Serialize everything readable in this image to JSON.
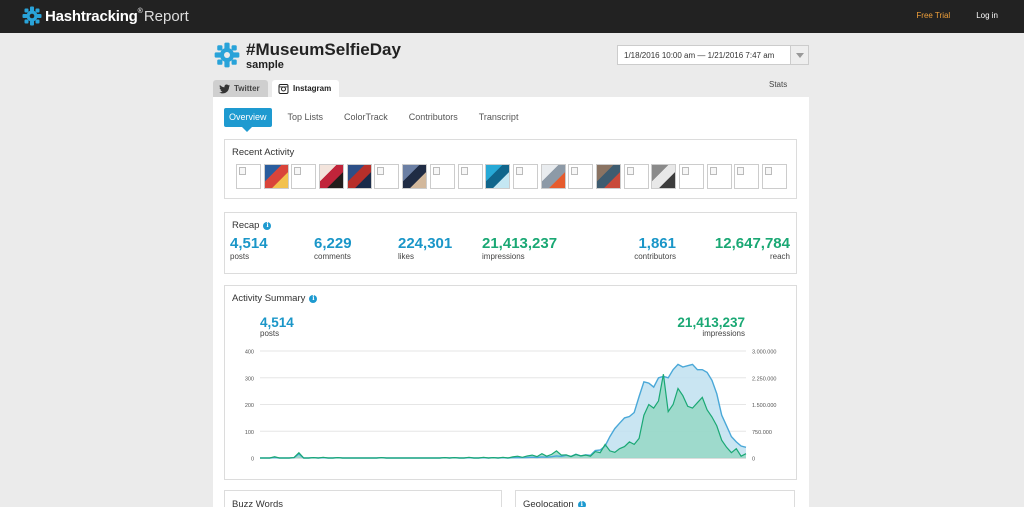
{
  "topbar": {
    "brand_name": "Hashtracking",
    "brand_reg": "®",
    "brand_sub": "Report",
    "free_trial": "Free Trial",
    "login": "Log in"
  },
  "header": {
    "hashtag": "#MuseumSelfieDay",
    "subtitle": "sample",
    "date_range": "1/18/2016 10:00 am — 1/21/2016 7:47 am"
  },
  "platform_tabs": [
    {
      "label": "Twitter",
      "icon": "twitter-icon",
      "active": false
    },
    {
      "label": "Instagram",
      "icon": "instagram-icon",
      "active": true
    }
  ],
  "stats_link": "Stats",
  "subnav": [
    "Overview",
    "Top Lists",
    "ColorTrack",
    "Contributors",
    "Transcript"
  ],
  "recent_activity": {
    "title": "Recent Activity",
    "thumbs": [
      {
        "type": "blank"
      },
      {
        "type": "photo",
        "colors": [
          "#2a5d9e",
          "#d9443a",
          "#f2c14e"
        ]
      },
      {
        "type": "blank"
      },
      {
        "type": "photo",
        "colors": [
          "#f3e4dc",
          "#c0243a",
          "#231d1c"
        ]
      },
      {
        "type": "photo",
        "colors": [
          "#2d4f87",
          "#b72f2a",
          "#1a2b4a"
        ]
      },
      {
        "type": "blank"
      },
      {
        "type": "photo",
        "colors": [
          "#6b7fa4",
          "#202c44",
          "#d2b89c"
        ]
      },
      {
        "type": "blank"
      },
      {
        "type": "blank"
      },
      {
        "type": "photo",
        "colors": [
          "#27a9d6",
          "#10668c",
          "#c4e7f3"
        ]
      },
      {
        "type": "blank"
      },
      {
        "type": "photo",
        "colors": [
          "#e9ecef",
          "#8d9aa7",
          "#e65c2e"
        ]
      },
      {
        "type": "blank"
      },
      {
        "type": "photo",
        "colors": [
          "#8a7362",
          "#3e5c70",
          "#c94a3a"
        ]
      },
      {
        "type": "blank"
      },
      {
        "type": "photo",
        "colors": [
          "#8a8a8a",
          "#e8e8e8",
          "#3c3c3c"
        ]
      },
      {
        "type": "blank"
      },
      {
        "type": "blank"
      },
      {
        "type": "blank"
      },
      {
        "type": "blank"
      }
    ]
  },
  "recap": {
    "title": "Recap",
    "items": [
      {
        "value": "4,514",
        "label": "posts",
        "color": "#1a96c8"
      },
      {
        "value": "6,229",
        "label": "comments",
        "color": "#1a96c8"
      },
      {
        "value": "224,301",
        "label": "likes",
        "color": "#1a96c8"
      },
      {
        "value": "21,413,237",
        "label": "impressions",
        "color": "#1aa874"
      },
      {
        "value": "1,861",
        "label": "contributors",
        "color": "#1a96c8"
      },
      {
        "value": "12,647,784",
        "label": "reach",
        "color": "#1aa874"
      }
    ]
  },
  "activity_summary": {
    "title": "Activity Summary",
    "posts_value": "4,514",
    "posts_label": "posts",
    "impressions_value": "21,413,237",
    "impressions_label": "impressions"
  },
  "chart_data": {
    "type": "area",
    "left_axis": {
      "ticks": [
        "400",
        "300",
        "200",
        "100",
        "0"
      ],
      "range": [
        0,
        400
      ]
    },
    "right_axis": {
      "ticks": [
        "3.000.000",
        "2.250.000",
        "1.500.000",
        "750.000",
        "0"
      ],
      "range": [
        0,
        3000000
      ]
    },
    "grid": true,
    "series": [
      {
        "name": "posts",
        "axis": "left",
        "color": "#4aa8d8",
        "fill": "#bfe0f0",
        "values": [
          0,
          0,
          0,
          2,
          0,
          0,
          0,
          1,
          15,
          0,
          0,
          1,
          0,
          1,
          0,
          0,
          1,
          0,
          0,
          0,
          0,
          0,
          0,
          0,
          0,
          1,
          0,
          0,
          0,
          0,
          0,
          0,
          0,
          0,
          0,
          0,
          0,
          0,
          1,
          0,
          1,
          0,
          0,
          1,
          0,
          0,
          1,
          0,
          1,
          0,
          1,
          0,
          1,
          2,
          1,
          2,
          3,
          2,
          4,
          3,
          5,
          8,
          6,
          10,
          6,
          14,
          8,
          12,
          10,
          28,
          30,
          45,
          80,
          110,
          130,
          150,
          155,
          170,
          230,
          285,
          280,
          265,
          300,
          305,
          300,
          330,
          350,
          340,
          345,
          350,
          330,
          330,
          320,
          290,
          240,
          160,
          120,
          80,
          60,
          45,
          40
        ]
      },
      {
        "name": "impressions",
        "axis": "right",
        "color": "#1aa874",
        "fill": "#8fd6bf",
        "values": [
          0,
          0,
          0,
          35000,
          0,
          0,
          0,
          10000,
          150000,
          0,
          0,
          10000,
          0,
          20000,
          0,
          0,
          10000,
          0,
          0,
          0,
          0,
          0,
          0,
          0,
          0,
          10000,
          0,
          0,
          0,
          0,
          0,
          0,
          0,
          0,
          0,
          0,
          0,
          0,
          10000,
          0,
          10000,
          0,
          0,
          20000,
          0,
          0,
          20000,
          0,
          10000,
          0,
          20000,
          0,
          30000,
          50000,
          20000,
          60000,
          80000,
          40000,
          120000,
          50000,
          100000,
          200000,
          80000,
          90000,
          40000,
          100000,
          60000,
          80000,
          50000,
          180000,
          150000,
          380000,
          200000,
          160000,
          260000,
          320000,
          450000,
          380000,
          550000,
          1200000,
          1500000,
          1400000,
          1600000,
          2350000,
          1300000,
          1500000,
          1950000,
          1750000,
          1450000,
          1400000,
          1550000,
          1700000,
          1350000,
          1150000,
          900000,
          500000,
          300000,
          150000,
          260000,
          50000,
          120000
        ]
      }
    ]
  },
  "bottom_cards": {
    "buzz_words": "Buzz Words",
    "geolocation": "Geolocation"
  },
  "colors": {
    "accent_blue": "#1e9ad0",
    "accent_green": "#1aa874",
    "free_trial": "#f0a03a",
    "topbar": "#222222"
  }
}
